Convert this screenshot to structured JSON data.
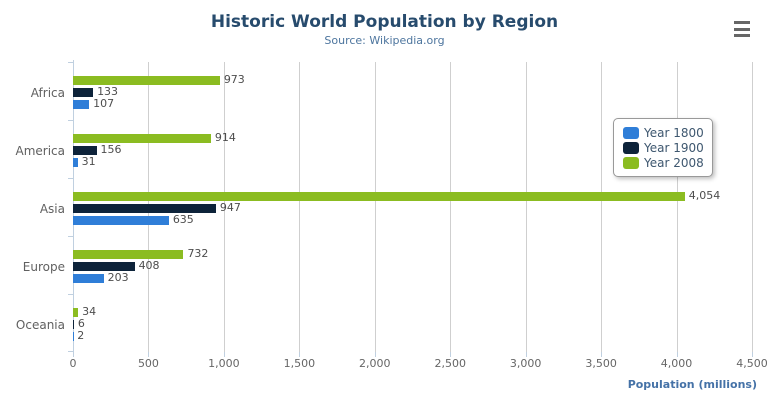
{
  "title": "Historic World Population by Region",
  "subtitle": "Source: Wikipedia.org",
  "menu": {
    "icon": "hamburger-icon"
  },
  "colors": {
    "title": "#274b6d",
    "subtitle": "#4d759e",
    "gridline": "#cfcfcf",
    "axis_line": "#c0d0e0",
    "axis_title": "#4572a7",
    "category_label": "#606060",
    "data_label": "#4d4d4d",
    "menu_icon": "#666666"
  },
  "chart_data": {
    "type": "bar",
    "orientation": "horizontal",
    "title": "Historic World Population by Region",
    "subtitle": "Source: Wikipedia.org",
    "categories": [
      "Africa",
      "America",
      "Asia",
      "Europe",
      "Oceania"
    ],
    "series": [
      {
        "name": "Year 1800",
        "color": "#2f7ed8",
        "values": [
          107,
          31,
          635,
          203,
          2
        ]
      },
      {
        "name": "Year 1900",
        "color": "#0d233a",
        "values": [
          133,
          156,
          947,
          408,
          6
        ]
      },
      {
        "name": "Year 2008",
        "color": "#8bbc21",
        "values": [
          973,
          914,
          4054,
          732,
          34
        ]
      }
    ],
    "bar_order_top_to_bottom": [
      "Year 2008",
      "Year 1900",
      "Year 1800"
    ],
    "xlabel": "Population (millions)",
    "ylabel": "",
    "xlim": [
      0,
      4500
    ],
    "xticks": [
      0,
      500,
      1000,
      1500,
      2000,
      2500,
      3000,
      3500,
      4000,
      4500
    ],
    "grid": true,
    "legend_position": "right",
    "data_labels": true
  }
}
